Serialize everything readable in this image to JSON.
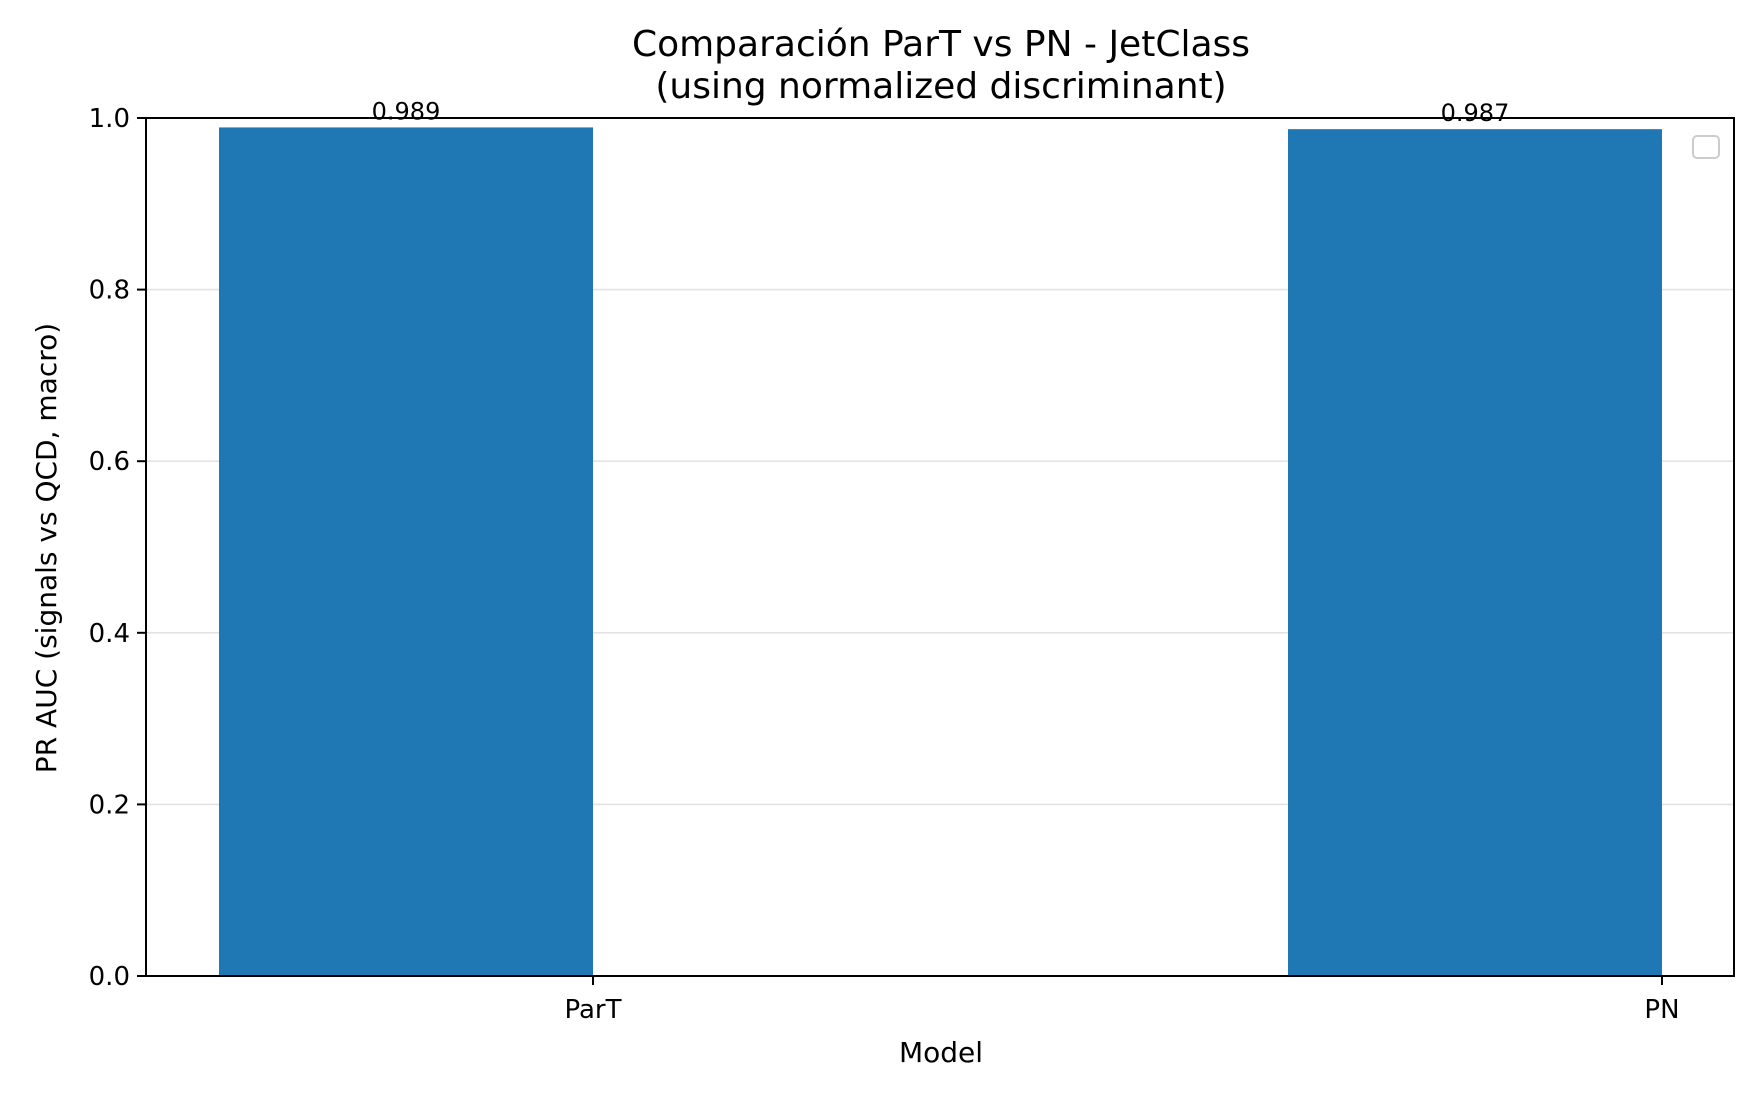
{
  "chart_data": {
    "type": "bar",
    "title": "Comparación ParT vs PN - JetClass",
    "subtitle": "(using normalized discriminant)",
    "xlabel": "Model",
    "ylabel": "PR AUC (signals vs QCD, macro)",
    "categories": [
      "ParT",
      "PN"
    ],
    "values": [
      0.989,
      0.987
    ],
    "value_labels": [
      "0.989",
      "0.987"
    ],
    "ylim": [
      0,
      1.0
    ],
    "yticks": [
      0.0,
      0.2,
      0.4,
      0.6,
      0.8,
      1.0
    ],
    "ytick_labels": [
      "0.0",
      "0.2",
      "0.4",
      "0.6",
      "0.8",
      "1.0"
    ],
    "grid": "horizontal",
    "legend": "top-right (empty)",
    "bar_color": "#1f77b4"
  }
}
